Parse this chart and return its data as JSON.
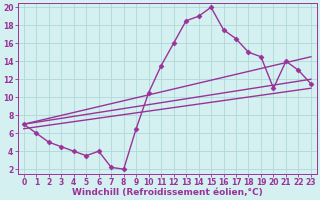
{
  "title": "",
  "xlabel": "Windchill (Refroidissement éolien,°C)",
  "ylabel": "",
  "bg_color": "#d4f0f0",
  "line_color": "#993399",
  "grid_color": "#b0d8d8",
  "xlim": [
    -0.5,
    23.5
  ],
  "ylim": [
    1.5,
    20.5
  ],
  "xticks": [
    0,
    1,
    2,
    3,
    4,
    5,
    6,
    7,
    8,
    9,
    10,
    11,
    12,
    13,
    14,
    15,
    16,
    17,
    18,
    19,
    20,
    21,
    22,
    23
  ],
  "yticks": [
    2,
    4,
    6,
    8,
    10,
    12,
    14,
    16,
    18,
    20
  ],
  "curve1_x": [
    0,
    1,
    2,
    3,
    4,
    5,
    6,
    7,
    8,
    9,
    10,
    11,
    12,
    13,
    14,
    15,
    16,
    17,
    18,
    19,
    20,
    21,
    22,
    23
  ],
  "curve1_y": [
    7.0,
    6.0,
    5.0,
    4.5,
    4.0,
    3.5,
    4.0,
    2.2,
    2.0,
    6.5,
    10.5,
    13.5,
    16.0,
    18.5,
    19.0,
    20.0,
    17.5,
    16.5,
    15.0,
    14.5,
    11.0,
    14.0,
    13.0,
    11.5
  ],
  "line1_x": [
    0,
    23
  ],
  "line1_y": [
    7.0,
    12.0
  ],
  "line2_x": [
    0,
    23
  ],
  "line2_y": [
    6.5,
    11.0
  ],
  "line3_x": [
    0,
    23
  ],
  "line3_y": [
    7.0,
    14.5
  ],
  "marker": "D",
  "markersize": 2.5,
  "linewidth": 1.0,
  "xlabel_fontsize": 6.5,
  "tick_fontsize": 5.5
}
